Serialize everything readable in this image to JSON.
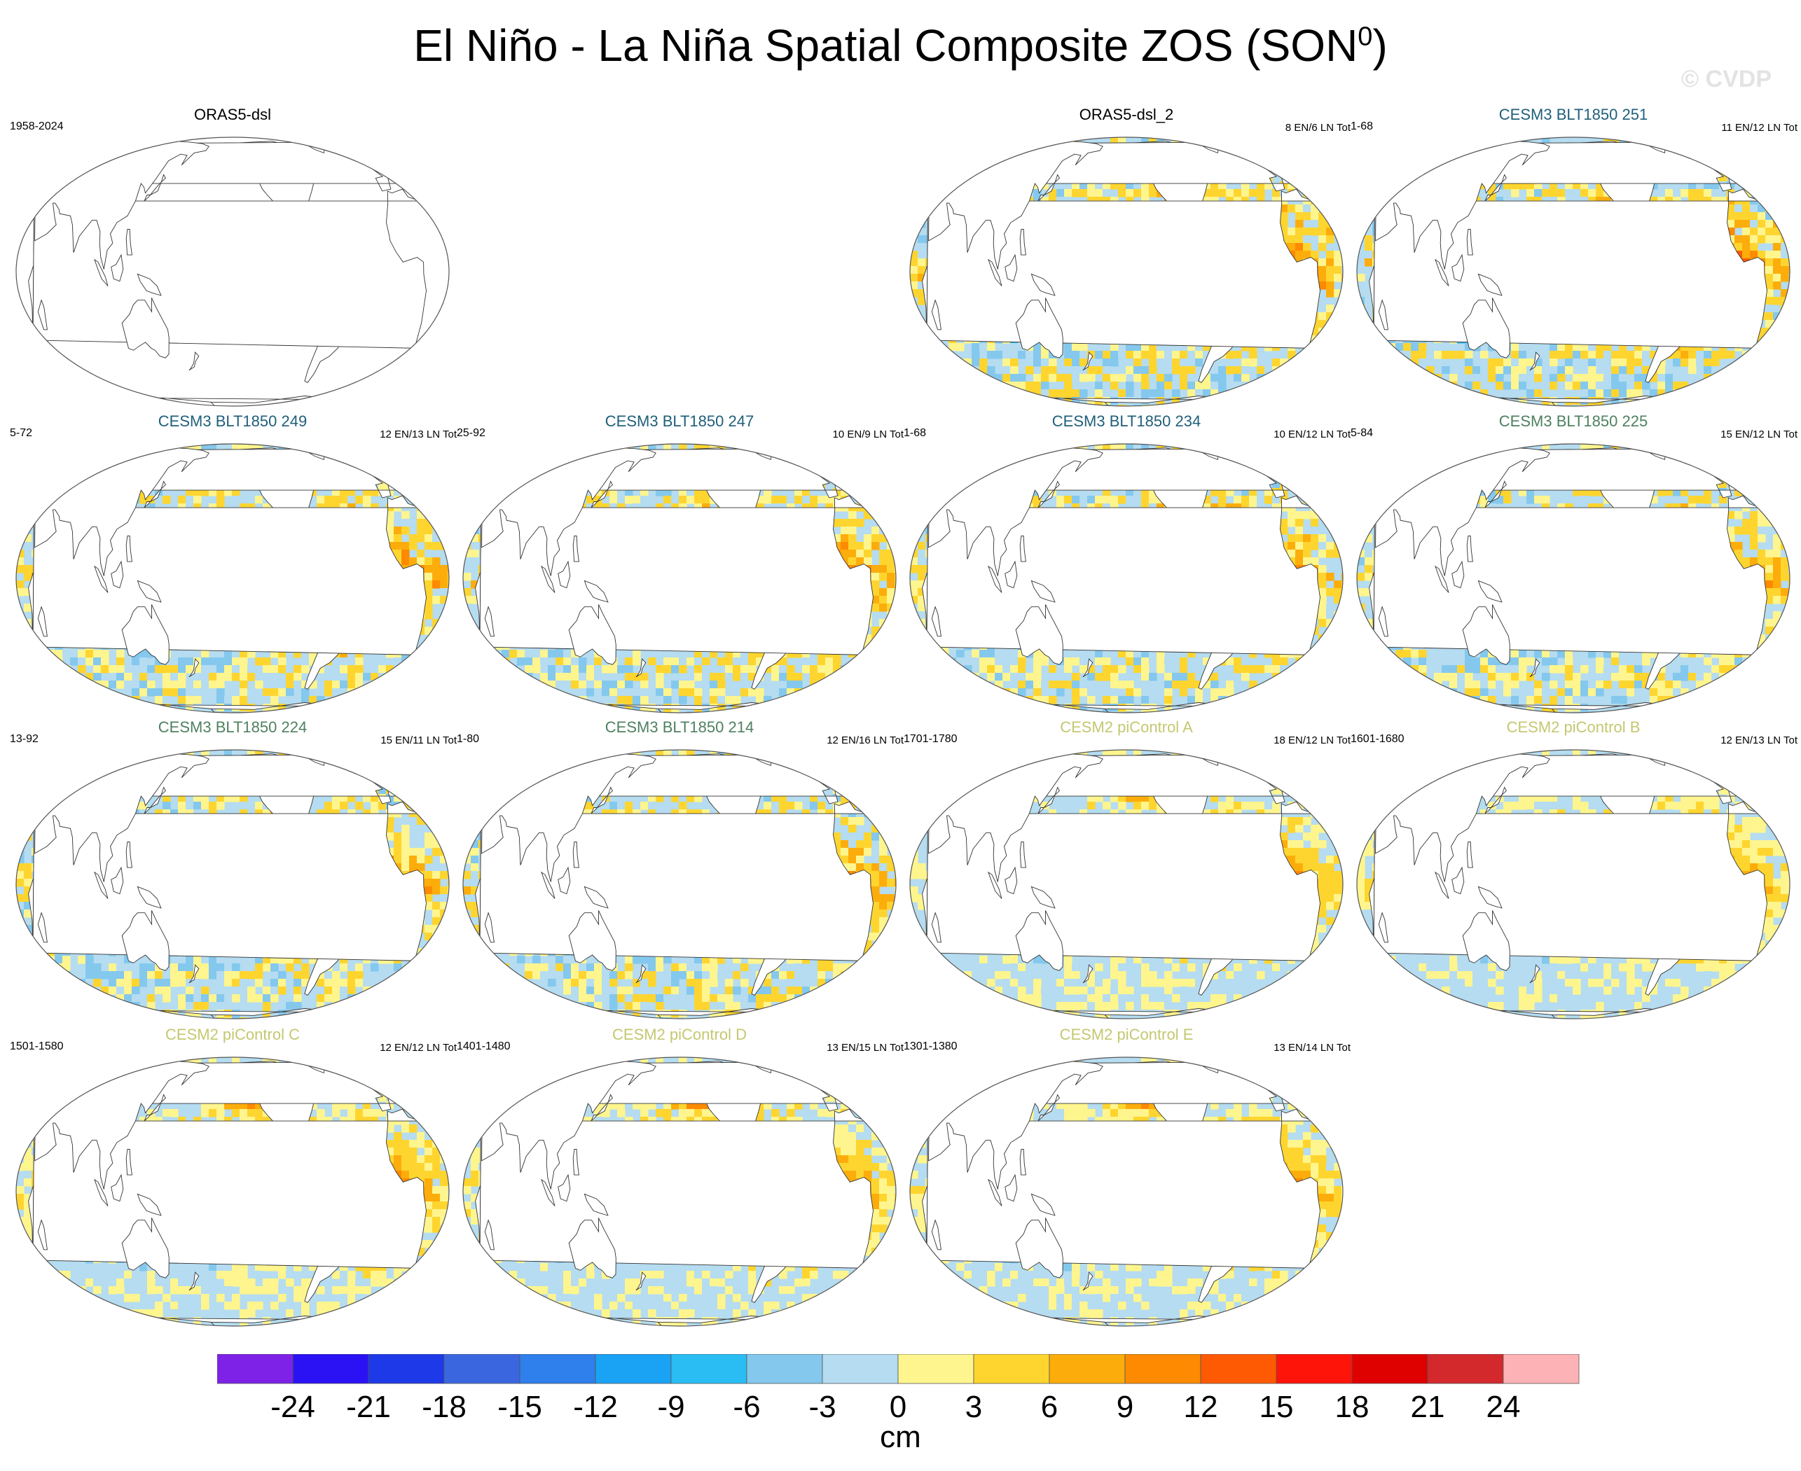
{
  "title": {
    "main": "El Niño - La Niña Spatial Composite ZOS (SON",
    "superscript": "0",
    "close": ")"
  },
  "watermark": "© CVDP",
  "colorbar": {
    "unit": "cm",
    "labels": [
      "-24",
      "-21",
      "-18",
      "-15",
      "-12",
      "-9",
      "-6",
      "-3",
      "0",
      "3",
      "6",
      "9",
      "12",
      "15",
      "18",
      "21",
      "24"
    ],
    "colors": [
      "#7d22e6",
      "#2b12f5",
      "#1e3ae8",
      "#3a66e0",
      "#2f7fec",
      "#1aa2f5",
      "#2abdf3",
      "#84c8ee",
      "#b5dcf0",
      "#fff58e",
      "#fed52f",
      "#fcad0b",
      "#fd8a00",
      "#fe5a03",
      "#fe1409",
      "#df0000",
      "#d3292d",
      "#fdb2b5"
    ]
  },
  "chart_data": [
    {
      "type": "heatmap",
      "title": "ORAS5-dsl",
      "title_color": "#000000",
      "period": "1958-2024",
      "counts": "",
      "has_data": false,
      "eq_max": 0,
      "wpac_min": 0,
      "noise": 0,
      "south_blob": false
    },
    {
      "type": "heatmap",
      "title": "ORAS5-dsl_2",
      "title_color": "#000000",
      "period": "",
      "counts": "8 EN/6 LN Tot",
      "has_data": true,
      "eq_max": 26,
      "wpac_min": -20,
      "noise": 0.65,
      "south_blob": false
    },
    {
      "type": "heatmap",
      "title": "CESM3 BLT1850 251",
      "title_color": "#1f5f7a",
      "period": "1-68",
      "counts": "11 EN/12 LN Tot",
      "has_data": true,
      "eq_max": 26,
      "wpac_min": -22,
      "noise": 0.7,
      "south_blob": false
    },
    {
      "type": "heatmap",
      "title": "CESM3 BLT1850 249",
      "title_color": "#1f5f7a",
      "period": "5-72",
      "counts": "12 EN/13 LN Tot",
      "has_data": true,
      "eq_max": 26,
      "wpac_min": -24,
      "noise": 0.6,
      "south_blob": false
    },
    {
      "type": "heatmap",
      "title": "CESM3 BLT1850 247",
      "title_color": "#1f5f7a",
      "period": "25-92",
      "counts": "10 EN/9 LN Tot",
      "has_data": true,
      "eq_max": 26,
      "wpac_min": -21,
      "noise": 0.6,
      "south_blob": false
    },
    {
      "type": "heatmap",
      "title": "CESM3 BLT1850 234",
      "title_color": "#1f5f7a",
      "period": "1-68",
      "counts": "10 EN/12 LN Tot",
      "has_data": true,
      "eq_max": 25,
      "wpac_min": -21,
      "noise": 0.6,
      "south_blob": false
    },
    {
      "type": "heatmap",
      "title": "CESM3 BLT1850 225",
      "title_color": "#4f8060",
      "period": "5-84",
      "counts": "15 EN/12 LN Tot",
      "has_data": true,
      "eq_max": 22,
      "wpac_min": -21,
      "noise": 0.6,
      "south_blob": false
    },
    {
      "type": "heatmap",
      "title": "CESM3 BLT1850 224",
      "title_color": "#4f8060",
      "period": "13-92",
      "counts": "15 EN/11 LN Tot",
      "has_data": true,
      "eq_max": 22,
      "wpac_min": -21,
      "noise": 0.6,
      "south_blob": false
    },
    {
      "type": "heatmap",
      "title": "CESM3 BLT1850 214",
      "title_color": "#4f8060",
      "period": "1-80",
      "counts": "12 EN/16 LN Tot",
      "has_data": true,
      "eq_max": 21,
      "wpac_min": -18,
      "noise": 0.65,
      "south_blob": false
    },
    {
      "type": "heatmap",
      "title": "CESM2 piControl A",
      "title_color": "#c4c870",
      "period": "1701-1780",
      "counts": "18 EN/12 LN Tot",
      "has_data": true,
      "eq_max": 21,
      "wpac_min": -18,
      "noise": 0.35,
      "south_blob": true
    },
    {
      "type": "heatmap",
      "title": "CESM2 piControl B",
      "title_color": "#c4c870",
      "period": "1601-1680",
      "counts": "12 EN/13 LN Tot",
      "has_data": true,
      "eq_max": 21,
      "wpac_min": -18,
      "noise": 0.35,
      "south_blob": false
    },
    {
      "type": "heatmap",
      "title": "CESM2 piControl C",
      "title_color": "#c4c870",
      "period": "1501-1580",
      "counts": "12 EN/12 LN Tot",
      "has_data": true,
      "eq_max": 25,
      "wpac_min": -21,
      "noise": 0.35,
      "south_blob": true
    },
    {
      "type": "heatmap",
      "title": "CESM2 piControl D",
      "title_color": "#c4c870",
      "period": "1401-1480",
      "counts": "13 EN/15 LN Tot",
      "has_data": true,
      "eq_max": 22,
      "wpac_min": -20,
      "noise": 0.35,
      "south_blob": true
    },
    {
      "type": "heatmap",
      "title": "CESM2 piControl E",
      "title_color": "#c4c870",
      "period": "1301-1380",
      "counts": "13 EN/14 LN Tot",
      "has_data": true,
      "eq_max": 22,
      "wpac_min": -20,
      "noise": 0.35,
      "south_blob": true
    }
  ]
}
